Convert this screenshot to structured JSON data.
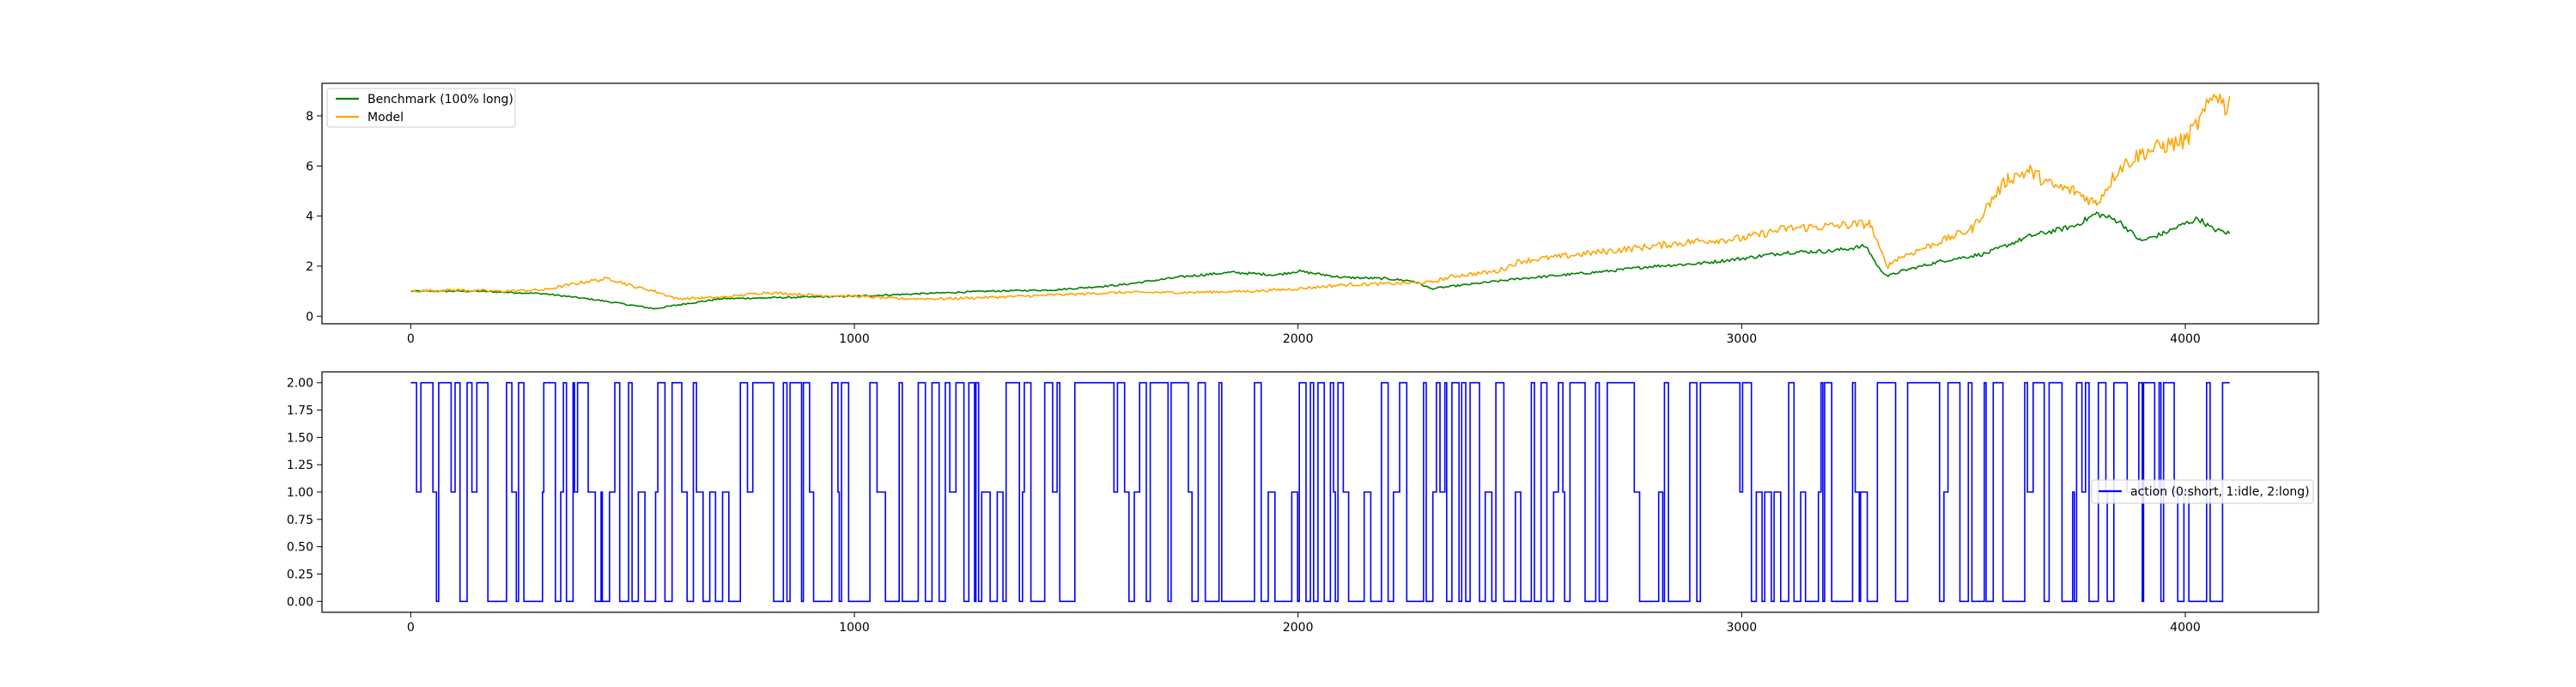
{
  "chart_data": [
    {
      "type": "line",
      "title": "",
      "xlabel": "",
      "ylabel": "",
      "xlim": [
        -200,
        4300
      ],
      "ylim": [
        -0.3,
        9.3
      ],
      "xticks": [
        0,
        1000,
        2000,
        3000,
        4000
      ],
      "yticks": [
        0,
        2,
        4,
        6,
        8
      ],
      "grid": false,
      "legend_position": "upper-left",
      "series": [
        {
          "name": "Benchmark (100% long)",
          "color": "#008000",
          "noise": 0.03,
          "points": [
            [
              0,
              1.0
            ],
            [
              150,
              1.0
            ],
            [
              300,
              0.9
            ],
            [
              420,
              0.65
            ],
            [
              550,
              0.3
            ],
            [
              620,
              0.5
            ],
            [
              700,
              0.7
            ],
            [
              850,
              0.75
            ],
            [
              1000,
              0.8
            ],
            [
              1150,
              0.9
            ],
            [
              1300,
              1.0
            ],
            [
              1450,
              1.05
            ],
            [
              1600,
              1.25
            ],
            [
              1750,
              1.6
            ],
            [
              1850,
              1.75
            ],
            [
              1950,
              1.65
            ],
            [
              2000,
              1.8
            ],
            [
              2100,
              1.55
            ],
            [
              2200,
              1.5
            ],
            [
              2260,
              1.4
            ],
            [
              2300,
              1.1
            ],
            [
              2400,
              1.3
            ],
            [
              2500,
              1.5
            ],
            [
              2600,
              1.65
            ],
            [
              2700,
              1.8
            ],
            [
              2800,
              2.0
            ],
            [
              2900,
              2.1
            ],
            [
              3000,
              2.3
            ],
            [
              3100,
              2.55
            ],
            [
              3200,
              2.6
            ],
            [
              3280,
              2.8
            ],
            [
              3310,
              1.9
            ],
            [
              3330,
              1.6
            ],
            [
              3360,
              1.8
            ],
            [
              3450,
              2.2
            ],
            [
              3550,
              2.5
            ],
            [
              3650,
              3.2
            ],
            [
              3750,
              3.6
            ],
            [
              3800,
              4.1
            ],
            [
              3850,
              3.8
            ],
            [
              3900,
              3.0
            ],
            [
              3950,
              3.3
            ],
            [
              4000,
              3.7
            ],
            [
              4030,
              3.9
            ],
            [
              4060,
              3.5
            ],
            [
              4100,
              3.3
            ]
          ]
        },
        {
          "name": "Model",
          "color": "#FFA500",
          "noise": 0.05,
          "points": [
            [
              0,
              1.0
            ],
            [
              100,
              1.05
            ],
            [
              200,
              1.0
            ],
            [
              300,
              1.05
            ],
            [
              400,
              1.4
            ],
            [
              450,
              1.5
            ],
            [
              500,
              1.2
            ],
            [
              550,
              1.0
            ],
            [
              600,
              0.7
            ],
            [
              700,
              0.75
            ],
            [
              800,
              0.95
            ],
            [
              900,
              0.85
            ],
            [
              1000,
              0.8
            ],
            [
              1100,
              0.7
            ],
            [
              1200,
              0.7
            ],
            [
              1300,
              0.75
            ],
            [
              1450,
              0.85
            ],
            [
              1600,
              0.95
            ],
            [
              1750,
              0.95
            ],
            [
              1900,
              1.0
            ],
            [
              2000,
              1.1
            ],
            [
              2100,
              1.25
            ],
            [
              2200,
              1.3
            ],
            [
              2300,
              1.35
            ],
            [
              2350,
              1.6
            ],
            [
              2450,
              1.8
            ],
            [
              2500,
              2.2
            ],
            [
              2600,
              2.4
            ],
            [
              2700,
              2.6
            ],
            [
              2800,
              2.8
            ],
            [
              2900,
              3.0
            ],
            [
              3000,
              3.1
            ],
            [
              3100,
              3.5
            ],
            [
              3200,
              3.6
            ],
            [
              3290,
              3.7
            ],
            [
              3310,
              2.7
            ],
            [
              3330,
              2.0
            ],
            [
              3350,
              2.3
            ],
            [
              3450,
              3.0
            ],
            [
              3520,
              3.5
            ],
            [
              3570,
              4.8
            ],
            [
              3600,
              5.5
            ],
            [
              3650,
              5.8
            ],
            [
              3700,
              5.2
            ],
            [
              3750,
              5.0
            ],
            [
              3800,
              4.5
            ],
            [
              3850,
              5.9
            ],
            [
              3900,
              6.5
            ],
            [
              3950,
              6.8
            ],
            [
              4000,
              7.0
            ],
            [
              4040,
              8.0
            ],
            [
              4070,
              9.0
            ],
            [
              4090,
              8.3
            ],
            [
              4100,
              8.8
            ]
          ]
        }
      ]
    },
    {
      "type": "line",
      "title": "",
      "xlabel": "",
      "ylabel": "",
      "xlim": [
        -200,
        4300
      ],
      "ylim": [
        -0.1,
        2.1
      ],
      "xticks": [
        0,
        1000,
        2000,
        3000,
        4000
      ],
      "yticks": [
        0.0,
        0.25,
        0.5,
        0.75,
        1.0,
        1.25,
        1.5,
        1.75,
        2.0
      ],
      "grid": false,
      "legend_position": "center-right",
      "series": [
        {
          "name": "action (0:short, 1:idle, 2:long)",
          "color": "#0000FF",
          "x_range": [
            0,
            4100
          ],
          "values": [
            0,
            2
          ]
        }
      ]
    }
  ]
}
